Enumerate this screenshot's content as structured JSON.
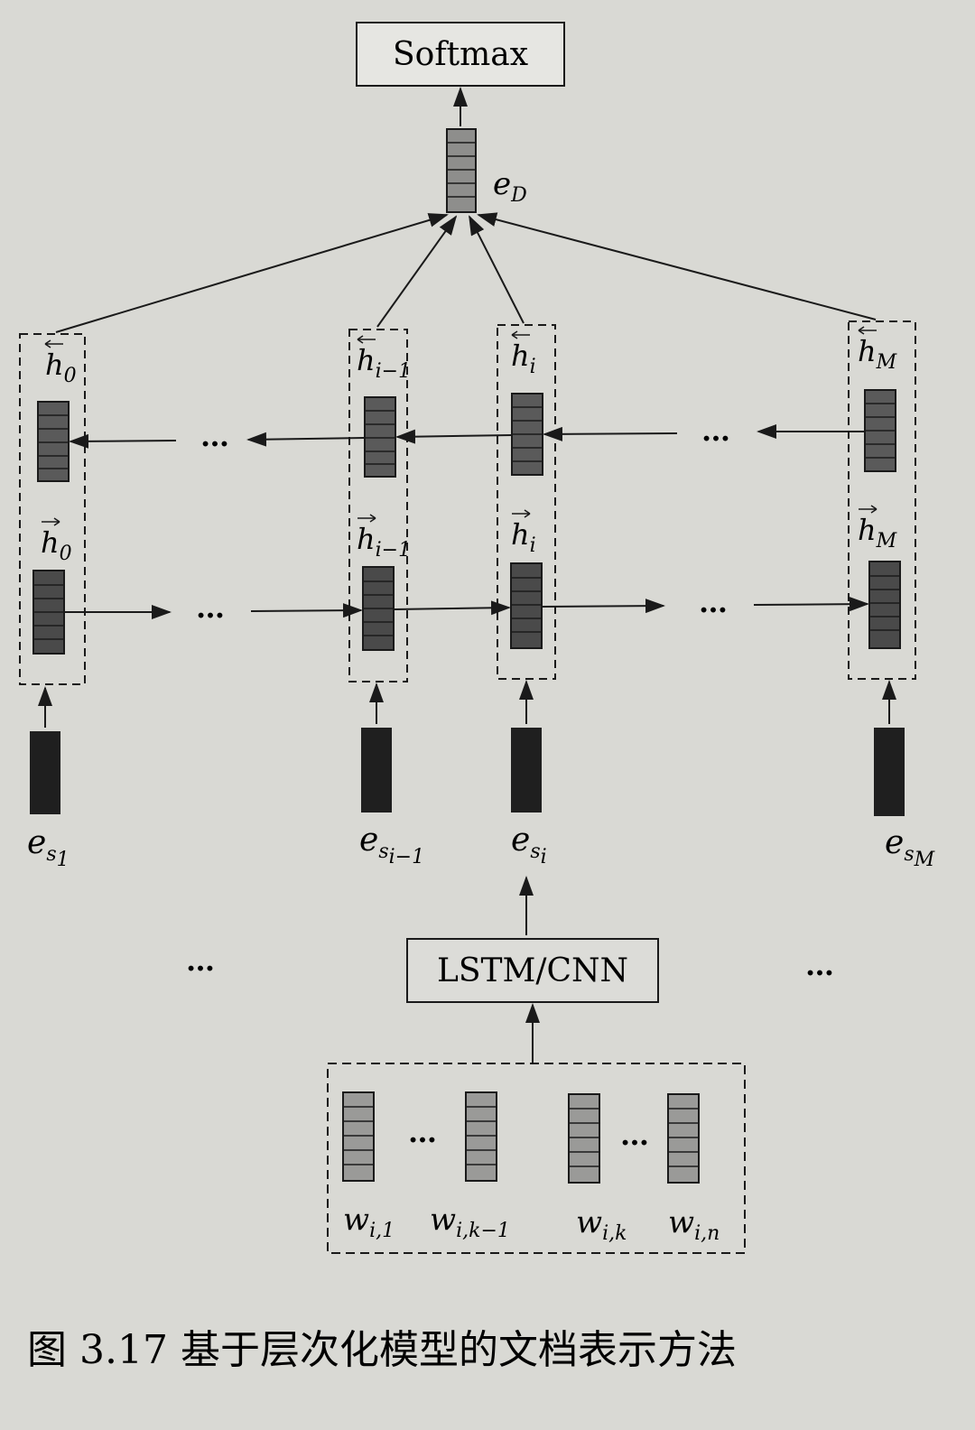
{
  "softmax_label": "Softmax",
  "lstm_cnn_label": "LSTM/CNN",
  "doc_vector": {
    "var": "e",
    "sub": "D"
  },
  "columns": [
    {
      "h_back": "h",
      "h_back_sub": "0",
      "h_fwd": "h",
      "h_fwd_sub": "0",
      "es_var": "e",
      "es_sub": "s",
      "es_subsub": "1"
    },
    {
      "h_back": "h",
      "h_back_sub": "i−1",
      "h_fwd": "h",
      "h_fwd_sub": "i−1",
      "es_var": "e",
      "es_sub": "s",
      "es_subsub": "i−1"
    },
    {
      "h_back": "h",
      "h_back_sub": "i",
      "h_fwd": "h",
      "h_fwd_sub": "i",
      "es_var": "e",
      "es_sub": "s",
      "es_subsub": "i"
    },
    {
      "h_back": "h",
      "h_back_sub": "M",
      "h_fwd": "h",
      "h_fwd_sub": "M",
      "es_var": "e",
      "es_sub": "s",
      "es_subsub": "M"
    }
  ],
  "ellipsis": "…",
  "words": [
    {
      "var": "w",
      "sub": "i,1"
    },
    {
      "var": "w",
      "sub": "i,k−1"
    },
    {
      "var": "w",
      "sub": "i,k"
    },
    {
      "var": "w",
      "sub": "i,n"
    }
  ],
  "caption": "图 3.17   基于层次化模型的文档表示方法",
  "colors": {
    "background": "#d9d9d4",
    "ink": "#1a1a1a",
    "dark_cell": "#4a4a4a",
    "light_cell": "#9a9a98"
  }
}
